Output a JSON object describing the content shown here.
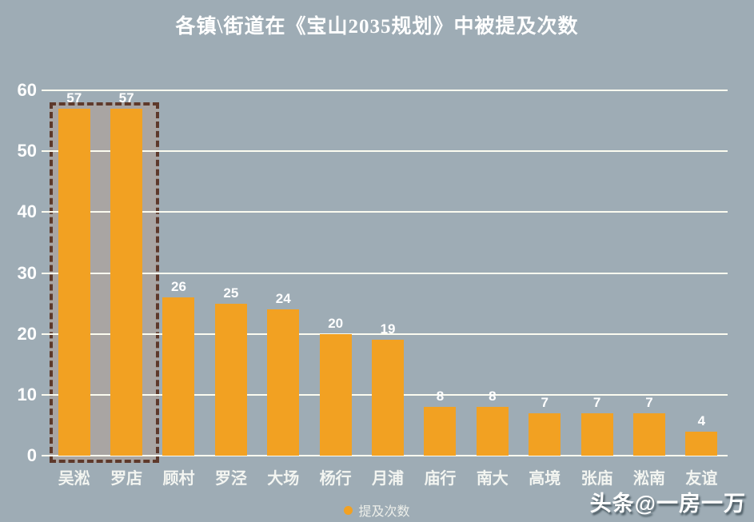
{
  "title": "各镇\\街道在《宝山2035规划》中被提及次数",
  "legend": {
    "label": "提及次数"
  },
  "watermark": "头条@一房一万",
  "colors": {
    "background": "#9EACB5",
    "bar": "#F2A122",
    "gridline": "#FCFCF0",
    "text": "#FFFFFF",
    "highlight_fill": "#A9A5A3",
    "highlight_border": "#5E392B"
  },
  "chart_data": {
    "type": "bar",
    "title": "各镇\\街道在《宝山2035规划》中被提及次数",
    "categories": [
      "吴淞",
      "罗店",
      "顾村",
      "罗泾",
      "大场",
      "杨行",
      "月浦",
      "庙行",
      "南大",
      "高境",
      "张庙",
      "淞南",
      "友谊"
    ],
    "values": [
      57,
      57,
      26,
      25,
      24,
      20,
      19,
      8,
      8,
      7,
      7,
      7,
      4
    ],
    "series_name": "提及次数",
    "xlabel": "",
    "ylabel": "",
    "ylim": [
      0,
      60
    ],
    "yticks": [
      0,
      10,
      20,
      30,
      40,
      50,
      60
    ],
    "grid": true,
    "value_labels": true,
    "legend_position": "bottom",
    "highlight": {
      "indices": [
        0,
        1
      ],
      "categories": [
        "吴淞",
        "罗店"
      ],
      "style": "dashed-rectangle"
    }
  }
}
